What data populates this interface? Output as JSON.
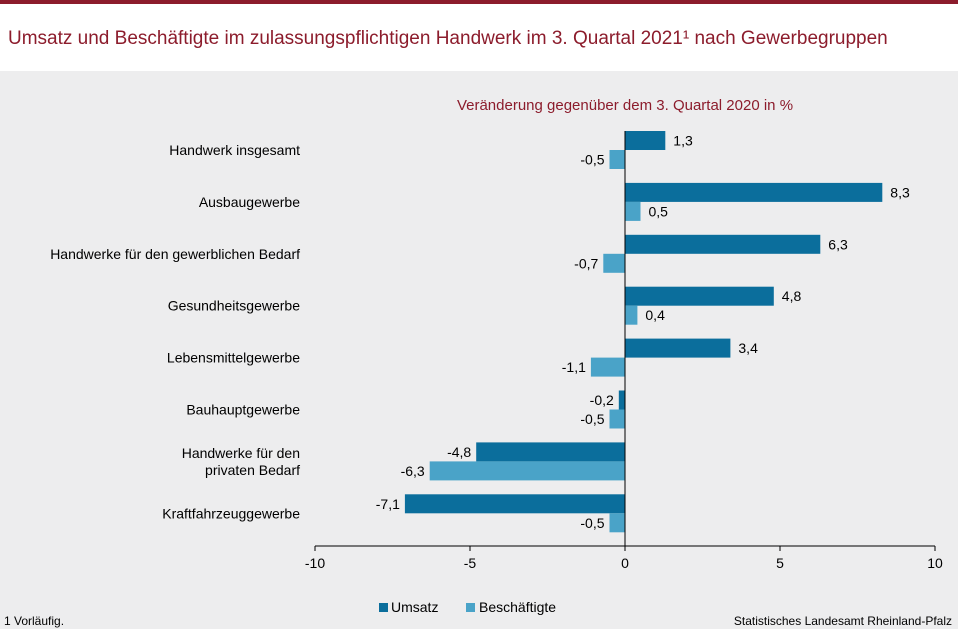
{
  "title": "Umsatz und Beschäftigte im zulassungspflichtigen Handwerk im 3. Quartal 2021¹ nach Gewerbegruppen",
  "footnote": "1 Vorläufig.",
  "source": "Statistisches Landesamt Rheinland-Pfalz",
  "colors": {
    "umsatz": "#0b6e9c",
    "beschaeftigte": "#4aa3c8",
    "accent": "#8c1c2c"
  },
  "chart_data": {
    "type": "bar",
    "orientation": "horizontal",
    "subtitle": "Veränderung gegenüber dem 3. Quartal 2020 in %",
    "categories": [
      [
        "Handwerk insgesamt"
      ],
      [
        "Ausbaugewerbe"
      ],
      [
        "Handwerke für den gewerblichen Bedarf"
      ],
      [
        "Gesundheitsgewerbe"
      ],
      [
        "Lebensmittelgewerbe"
      ],
      [
        "Bauhauptgewerbe"
      ],
      [
        "Handwerke für den",
        "privaten Bedarf"
      ],
      [
        "Kraftfahrzeuggewerbe"
      ]
    ],
    "series": [
      {
        "name": "Umsatz",
        "values": [
          1.3,
          8.3,
          6.3,
          4.8,
          3.4,
          -0.2,
          -4.8,
          -7.1
        ],
        "labels": [
          "1,3",
          "8,3",
          "6,3",
          "4,8",
          "3,4",
          "-0,2",
          "-4,8",
          "-7,1"
        ]
      },
      {
        "name": "Beschäftigte",
        "values": [
          -0.5,
          0.5,
          -0.7,
          0.4,
          -1.1,
          -0.5,
          -6.3,
          -0.5
        ],
        "labels": [
          "-0,5",
          "0,5",
          "-0,7",
          "0,4",
          "-1,1",
          "-0,5",
          "-6,3",
          "-0,5"
        ]
      }
    ],
    "xlim": [
      -10,
      10
    ],
    "xticks": [
      -10,
      -5,
      0,
      5,
      10
    ],
    "xtick_labels": [
      "-10",
      "-5",
      "0",
      "5",
      "10"
    ],
    "legend": "bottom-center"
  }
}
